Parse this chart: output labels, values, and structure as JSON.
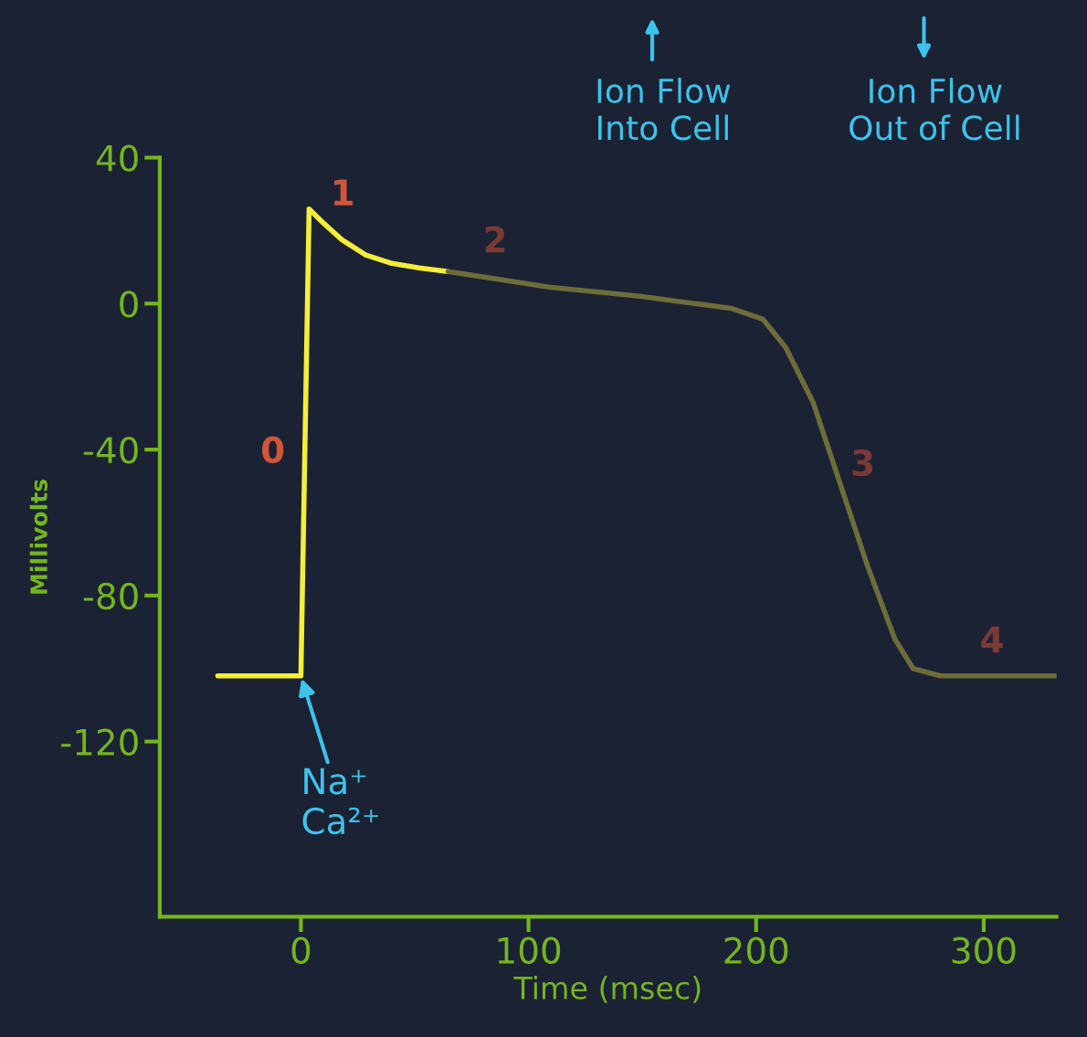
{
  "chart_data": {
    "type": "line",
    "xlabel": "Time (msec)",
    "ylabel": "Millivolts",
    "xlim": [
      -62,
      332
    ],
    "ylim": [
      -168,
      40
    ],
    "xticks": [
      0,
      100,
      200,
      300
    ],
    "yticks": [
      40,
      0,
      -40,
      -80,
      -120
    ],
    "grid": false,
    "legend": false,
    "marker": "none",
    "line_style": "solid",
    "series": [
      {
        "color": "#f5ee3a",
        "x": [
          -36.5,
          0,
          3.6,
          10,
          18,
          28.5,
          40,
          52,
          64.7
        ],
        "values": [
          -102,
          -102,
          25.9,
          22,
          17.5,
          13.3,
          11,
          9.8,
          8.8
        ]
      },
      {
        "color": "#6e6c3a",
        "x": [
          64.7,
          109,
          149,
          189,
          203,
          213,
          225,
          237,
          249,
          261,
          269,
          281,
          332
        ],
        "values": [
          8.8,
          4.5,
          2,
          -1.3,
          -4.3,
          -12,
          -27,
          -49.5,
          -72,
          -92,
          -100,
          -102,
          -102
        ]
      }
    ],
    "annotations": [
      "0",
      "1",
      "2",
      "3",
      "4",
      {
        "text": "Na⁺\nCa²⁺",
        "x": 0,
        "y": -102
      },
      "Ion Flow\nInto Cell",
      "Ion Flow\nOut of Cell"
    ]
  }
}
